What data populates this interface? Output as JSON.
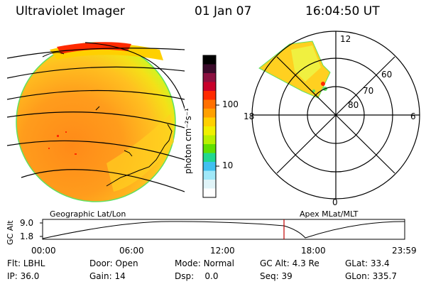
{
  "header": {
    "instrument": "Ultraviolet Imager",
    "date": "01 Jan 07",
    "time": "16:04:50 UT"
  },
  "colorbar": {
    "unit_label": "photon cm⁻²s⁻¹",
    "ticks": [
      "100",
      "10"
    ],
    "colors": [
      "#000000",
      "#3a0a2a",
      "#8b1040",
      "#c8002a",
      "#ff2a00",
      "#ff7000",
      "#ffa000",
      "#ffd000",
      "#f0f000",
      "#b8f000",
      "#60e000",
      "#20d890",
      "#40c0f0",
      "#a0e8f8",
      "#e0f4f8",
      "#ffffff"
    ]
  },
  "polar_plot": {
    "labels": {
      "top": "12",
      "bottom": "0",
      "left": "18",
      "right": "6"
    },
    "rings": [
      "60",
      "70",
      "80"
    ]
  },
  "timeline": {
    "left_title": "Geographic Lat/Lon",
    "right_title": "Apex MLat/MLT",
    "axis_label": "GC Alt",
    "y_ticks": [
      "9.0",
      "1.8"
    ],
    "x_ticks": [
      "00:00",
      "06:00",
      "12:00",
      "18:00",
      "23:59"
    ],
    "current_marker_color": "#c00000"
  },
  "info": {
    "row1": [
      {
        "label": "Flt:",
        "value": "LBHL"
      },
      {
        "label": "Door:",
        "value": "Open"
      },
      {
        "label": "Mode:",
        "value": "Normal"
      },
      {
        "label": "GC Alt:",
        "value": "4.3 Re"
      },
      {
        "label": "GLat:",
        "value": "33.4"
      }
    ],
    "row2": [
      {
        "label": "IP:",
        "value": "36.0"
      },
      {
        "label": "Gain:",
        "value": "14"
      },
      {
        "label": "Dsp:",
        "value": "0.0"
      },
      {
        "label": "Seq:",
        "value": "39"
      },
      {
        "label": "GLon:",
        "value": "335.7"
      }
    ]
  }
}
